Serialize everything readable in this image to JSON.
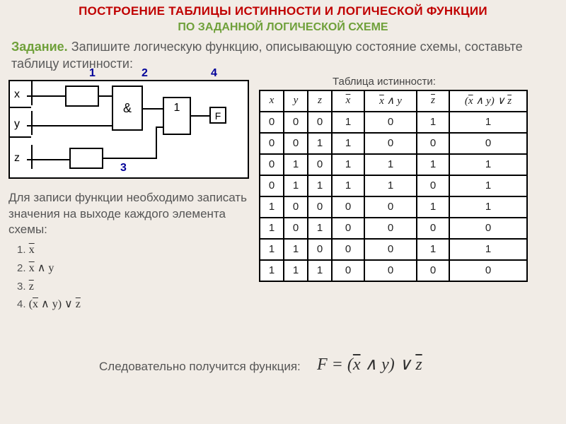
{
  "header": {
    "line1": "ПОСТРОЕНИЕ ТАБЛИЦЫ ИСТИННОСТИ И ЛОГИЧЕСКОЙ ФУНКЦИИ",
    "line2": "ПО ЗАДАННОЙ ЛОГИЧЕСКОЙ СХЕМЕ"
  },
  "task": {
    "label": "Задание.",
    "text": "Запишите логическую функцию, описывающую состояние схемы, составьте таблицу истинности:"
  },
  "circuit": {
    "vars": [
      "x",
      "y",
      "z"
    ],
    "numbers": [
      "1",
      "2",
      "3",
      "4"
    ],
    "gate_and": "&",
    "gate_not": "1",
    "out": "F"
  },
  "truth": {
    "caption": "Таблица истинности:",
    "headers": [
      "x",
      "y",
      "z",
      "x̄",
      "x̄ ∧ y",
      "z̄",
      "(x̄ ∧ y) ∨ z̄"
    ],
    "col_widths": [
      "c-narrow",
      "c-narrow",
      "c-narrow",
      "c-mid",
      "c-wide",
      "c-mid",
      "c-xwide"
    ],
    "rows": [
      [
        0,
        0,
        0,
        1,
        0,
        1,
        1
      ],
      [
        0,
        0,
        1,
        1,
        0,
        0,
        0
      ],
      [
        0,
        1,
        0,
        1,
        1,
        1,
        1
      ],
      [
        0,
        1,
        1,
        1,
        1,
        0,
        1
      ],
      [
        1,
        0,
        0,
        0,
        0,
        1,
        1
      ],
      [
        1,
        0,
        1,
        0,
        0,
        0,
        0
      ],
      [
        1,
        1,
        0,
        0,
        0,
        1,
        1
      ],
      [
        1,
        1,
        1,
        0,
        0,
        0,
        0
      ]
    ]
  },
  "explain": "Для записи функции необходимо записать значения на выходе каждого элемента схемы:",
  "steps": [
    "1.",
    "2.",
    "3.",
    "4."
  ],
  "step_exprs": [
    "x̄",
    "x̄ ∧ y",
    "z̄",
    "(x̄ ∧ y) ∨ z̄"
  ],
  "conclusion": "Следовательно получится функция:",
  "formula_lhs": "F",
  "formula_rhs": "= (x̄ ∧ y) ∨ z̄",
  "colors": {
    "bg": "#f1ece6",
    "title": "#c00000",
    "subtitle": "#6fa03a",
    "body": "#5a5a5a",
    "white": "#ffffff",
    "border": "#000000",
    "num": "#000099"
  }
}
